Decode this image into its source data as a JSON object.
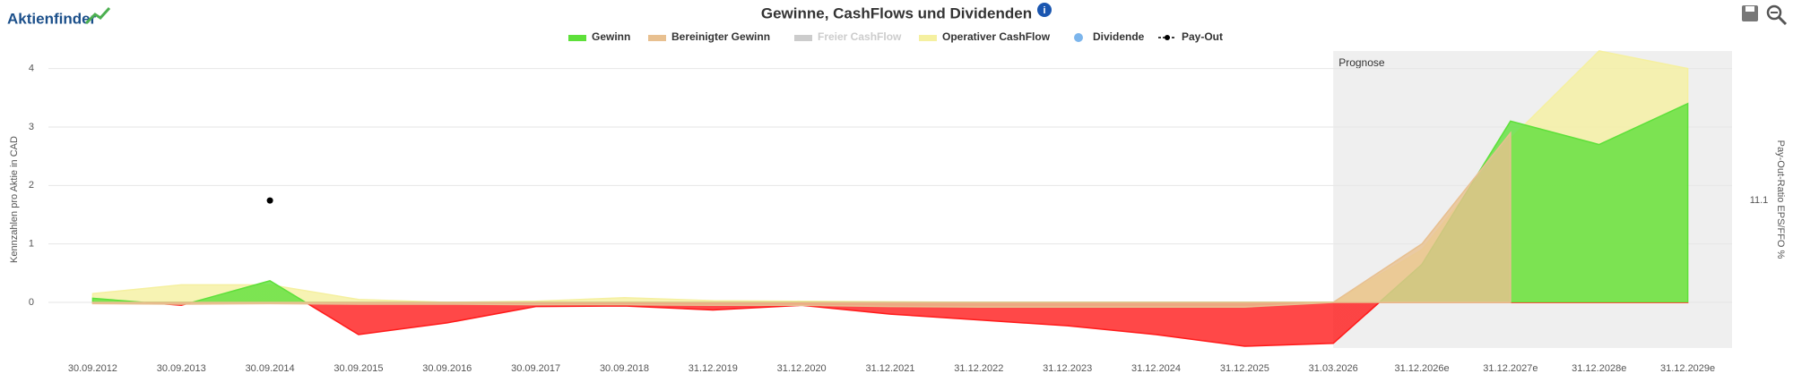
{
  "chart_data": {
    "type": "area",
    "logo": "Aktienfinder",
    "title": "Gewinne, CashFlows und Dividenden",
    "y_label": "Kennzahlen pro Aktie in CAD",
    "y2_label": "Pay-Out-Ratio EPS/FFO %",
    "categories": [
      "30.09.2012",
      "30.09.2013",
      "30.09.2014",
      "30.09.2015",
      "30.09.2016",
      "30.09.2017",
      "30.09.2018",
      "31.12.2019",
      "31.12.2020",
      "31.12.2021",
      "31.12.2022",
      "31.12.2023",
      "31.12.2024",
      "31.12.2025",
      "31.03.2026",
      "31.12.2026e",
      "31.12.2027e",
      "31.12.2028e",
      "31.12.2029e"
    ],
    "ylim": [
      -0.78,
      4.3
    ],
    "yticks": [
      0,
      1,
      2,
      3,
      4
    ],
    "y2lim": [
      -4.98,
      27.4
    ],
    "y2ticks": [
      11.1
    ],
    "grid": true,
    "forecast": {
      "label": "Prognose",
      "start": 14
    },
    "series": [
      {
        "name": "Operativer CashFlow",
        "color": "#f5f0a0",
        "values": [
          0.15,
          0.3,
          0.3,
          0.05,
          0.0,
          0.02,
          0.08,
          0.03,
          0.02,
          0.01,
          0.0,
          0.0,
          0.0,
          0.0,
          0.0,
          0.9,
          2.8,
          4.3,
          4.0
        ]
      },
      {
        "name": "Gewinn",
        "color": "#5ee03a",
        "negative_color": "#ff1a1a",
        "values": [
          0.07,
          -0.05,
          0.37,
          -0.55,
          -0.35,
          -0.07,
          -0.06,
          -0.13,
          -0.05,
          -0.2,
          -0.3,
          -0.4,
          -0.55,
          -0.75,
          -0.7,
          0.65,
          3.1,
          2.7,
          3.4
        ]
      },
      {
        "name": "Bereinigter Gewinn",
        "color": "#e8c090",
        "values": [
          -0.02,
          -0.03,
          -0.02,
          -0.03,
          -0.03,
          -0.04,
          -0.04,
          -0.05,
          -0.05,
          -0.07,
          -0.08,
          -0.08,
          -0.08,
          -0.08,
          0.0,
          1.0,
          2.9,
          null,
          null
        ]
      },
      {
        "name": "Freier CashFlow",
        "color": "#cccccc",
        "hidden": true
      },
      {
        "name": "Dividende",
        "color": "#7cb5ec",
        "type": "scatter"
      },
      {
        "name": "Pay-Out",
        "color": "#000000",
        "type": "line",
        "axis": "y2",
        "values": [
          null,
          null,
          11.1,
          null,
          null,
          null,
          null,
          null,
          null,
          null,
          null,
          null,
          null,
          null,
          null,
          null,
          null,
          null,
          null
        ]
      }
    ]
  }
}
